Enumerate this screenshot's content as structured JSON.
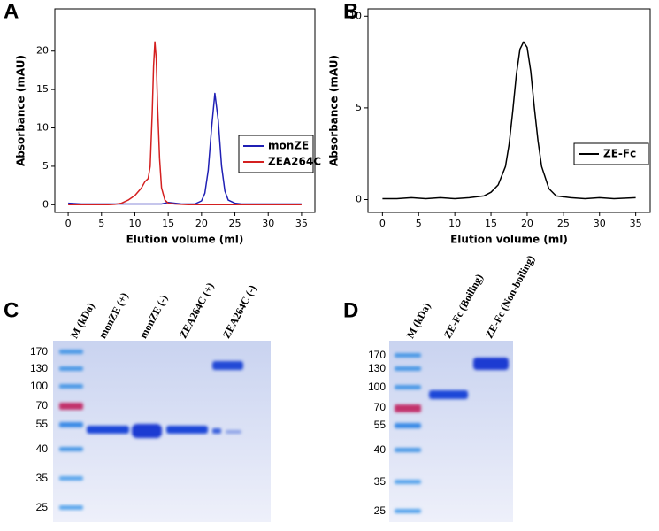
{
  "chart_data": [
    {
      "type": "line",
      "panel_label": "A",
      "xlabel": "Elution volume (ml)",
      "ylabel": "Absorbance (mAU)",
      "x": [
        0,
        2,
        4,
        6,
        7,
        8,
        9,
        10,
        11,
        11.5,
        12,
        12.3,
        12.6,
        12.8,
        13,
        13.2,
        13.4,
        13.7,
        14,
        14.5,
        15,
        16,
        17,
        18,
        19,
        20,
        20.5,
        21,
        21.5,
        22,
        22.5,
        23,
        23.5,
        24,
        25,
        26,
        28,
        30,
        32,
        35
      ],
      "series": [
        {
          "name": "monZE",
          "color": "#1f1fb4",
          "values": [
            0.2,
            0.1,
            0.1,
            0.1,
            0.1,
            0.1,
            0.1,
            0.1,
            0.1,
            0.1,
            0.1,
            0.1,
            0.1,
            0.1,
            0.1,
            0.1,
            0.1,
            0.1,
            0.1,
            0.2,
            0.3,
            0.2,
            0.1,
            0.1,
            0.1,
            0.5,
            1.5,
            4.5,
            10,
            14.5,
            11,
            5,
            1.8,
            0.6,
            0.2,
            0.1,
            0.1,
            0.1,
            0.1,
            0.1
          ]
        },
        {
          "name": "ZEA264C",
          "color": "#d42020",
          "values": [
            0,
            0,
            0,
            0,
            0.05,
            0.2,
            0.6,
            1.2,
            2.2,
            3,
            3.4,
            5,
            12,
            18,
            21.2,
            19,
            13,
            6,
            2.2,
            0.6,
            0.2,
            0.1,
            0.05,
            0,
            0,
            0,
            0,
            0,
            0,
            0,
            0,
            0,
            0,
            0,
            0,
            0,
            0,
            0,
            0,
            0
          ]
        }
      ],
      "xlim": [
        -2,
        37
      ],
      "ylim": [
        -1,
        25.5
      ],
      "xticks": [
        0,
        5,
        10,
        15,
        20,
        25,
        30,
        35
      ],
      "yticks": [
        0,
        5,
        10,
        15,
        20
      ],
      "legend": "right"
    },
    {
      "type": "line",
      "panel_label": "B",
      "xlabel": "Elution volume (ml)",
      "ylabel": "Absorbance (mAU)",
      "x": [
        0,
        2,
        4,
        6,
        8,
        10,
        12,
        14,
        15,
        16,
        17,
        17.5,
        18,
        18.5,
        19,
        19.5,
        20,
        20.5,
        21,
        21.5,
        22,
        23,
        24,
        26,
        28,
        30,
        32,
        35
      ],
      "series": [
        {
          "name": "ZE-Fc",
          "color": "#000000",
          "values": [
            0.05,
            0.05,
            0.1,
            0.05,
            0.1,
            0.05,
            0.1,
            0.2,
            0.4,
            0.8,
            1.8,
            3,
            4.8,
            6.8,
            8.2,
            8.6,
            8.3,
            7,
            5,
            3.2,
            1.8,
            0.6,
            0.2,
            0.1,
            0.05,
            0.1,
            0.05,
            0.1
          ]
        }
      ],
      "xlim": [
        -2,
        37
      ],
      "ylim": [
        -0.7,
        10.4
      ],
      "xticks": [
        0,
        5,
        10,
        15,
        20,
        25,
        30,
        35
      ],
      "yticks": [
        0,
        5,
        10
      ],
      "legend": "right"
    }
  ],
  "gels": [
    {
      "panel_label": "C",
      "marker_header": "M (kDa)",
      "marker_labels": [
        "170",
        "130",
        "100",
        "70",
        "55",
        "40",
        "35",
        "25"
      ],
      "lanes": [
        "monZE (+)",
        "monZE (-)",
        "ZEA264C (+)",
        "ZEA264C (-)"
      ]
    },
    {
      "panel_label": "D",
      "marker_header": "M (kDa)",
      "marker_labels": [
        "170",
        "130",
        "100",
        "70",
        "55",
        "40",
        "35",
        "25"
      ],
      "lanes": [
        "ZE-Fc (Boiling)",
        "ZE-Fc (Non-boiling)"
      ]
    }
  ]
}
